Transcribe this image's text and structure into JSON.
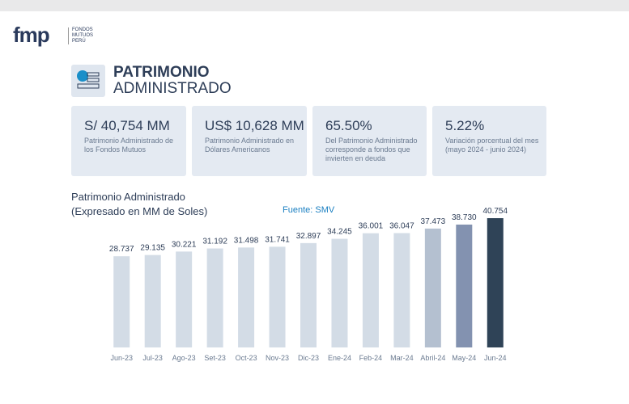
{
  "header": {
    "logo": "fmp",
    "logo_subtitle": "FONDOS MUTUOS PERÚ",
    "title_line1": "PATRIMONIO",
    "title_line2": "ADMINISTRADO"
  },
  "cards": [
    {
      "value": "S/ 40,754 MM",
      "description": "Patrimonio Administrado de los Fondos Mutuos"
    },
    {
      "value": "US$ 10,628 MM",
      "description": "Patrimonio Administrado en Dólares Americanos"
    },
    {
      "value": "65.50%",
      "description": "Del Patrimonio Administrado corresponde a fondos que invierten en deuda"
    },
    {
      "value": "5.22%",
      "description": "Variación porcentual del mes (mayo 2024 - junio 2024)"
    }
  ],
  "chart_data": {
    "type": "bar",
    "title": "Patrimonio Administrado",
    "subtitle": "(Expresado en MM de Soles)",
    "source": "Fuente: SMV",
    "categories": [
      "Jun-23",
      "Jul-23",
      "Ago-23",
      "Set-23",
      "Oct-23",
      "Nov-23",
      "Dic-23",
      "Ene-24",
      "Feb-24",
      "Mar-24",
      "Abril-24",
      "May-24",
      "Jun-24"
    ],
    "values": [
      28737,
      29135,
      30221,
      31192,
      31498,
      31741,
      32897,
      34245,
      36001,
      36047,
      37473,
      38730,
      40754
    ],
    "value_labels": [
      "28.737",
      "29.135",
      "30.221",
      "31.192",
      "31.498",
      "31.741",
      "32.897",
      "34.245",
      "36.001",
      "36.047",
      "37.473",
      "38.730",
      "40.754"
    ],
    "colors": [
      "#d3dce6",
      "#d3dce6",
      "#d3dce6",
      "#d3dce6",
      "#d3dce6",
      "#d3dce6",
      "#d3dce6",
      "#d3dce6",
      "#d3dce6",
      "#d3dce6",
      "#b4c0d0",
      "#8392b0",
      "#2f4357"
    ]
  }
}
